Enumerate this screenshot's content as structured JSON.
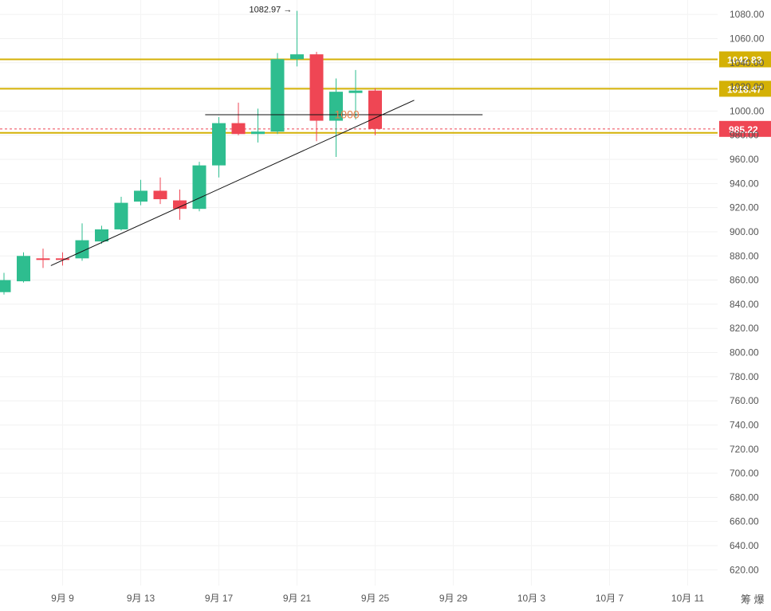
{
  "chart_data": {
    "type": "candlestick",
    "title": "",
    "colors": {
      "up": "#2ebd8f",
      "down": "#ef4654",
      "level": "#d4b106",
      "current": "#ef4654",
      "trendline": "#111111"
    },
    "x_tick_labels": [
      {
        "date": "9月 9",
        "index": 3
      },
      {
        "date": "9月 13",
        "index": 7
      },
      {
        "date": "9月 17",
        "index": 11
      },
      {
        "date": "9月 21",
        "index": 15
      },
      {
        "date": "9月 25",
        "index": 19
      },
      {
        "date": "9月 29",
        "index": 23
      },
      {
        "date": "10月 3",
        "index": 27
      },
      {
        "date": "10月 7",
        "index": 31
      },
      {
        "date": "10月 11",
        "index": 35
      }
    ],
    "y_ticks": [
      620,
      640,
      660,
      680,
      700,
      720,
      740,
      760,
      780,
      800,
      820,
      840,
      860,
      880,
      900,
      920,
      940,
      960,
      980,
      1000,
      1020,
      1040,
      1060,
      1080
    ],
    "y_tick_labels": [
      "620.00",
      "640.00",
      "660.00",
      "680.00",
      "700.00",
      "720.00",
      "740.00",
      "760.00",
      "780.00",
      "800.00",
      "820.00",
      "840.00",
      "860.00",
      "880.00",
      "900.00",
      "920.00",
      "940.00",
      "960.00",
      "980.00",
      "1000.00",
      "1020.00",
      "1040.00",
      "1060.00",
      "1080.00"
    ],
    "ylim": [
      607,
      1092
    ],
    "candles": [
      {
        "o": 850,
        "h": 866,
        "l": 848,
        "c": 860
      },
      {
        "o": 859,
        "h": 883,
        "l": 858,
        "c": 880
      },
      {
        "o": 878,
        "h": 886,
        "l": 870,
        "c": 877
      },
      {
        "o": 878,
        "h": 883,
        "l": 872,
        "c": 877
      },
      {
        "o": 878,
        "h": 907,
        "l": 876,
        "c": 893
      },
      {
        "o": 892,
        "h": 905,
        "l": 890,
        "c": 902
      },
      {
        "o": 902,
        "h": 929,
        "l": 901,
        "c": 924
      },
      {
        "o": 925,
        "h": 943,
        "l": 922,
        "c": 934
      },
      {
        "o": 934,
        "h": 945,
        "l": 923,
        "c": 927
      },
      {
        "o": 926,
        "h": 935,
        "l": 910,
        "c": 919
      },
      {
        "o": 919,
        "h": 958,
        "l": 917,
        "c": 955
      },
      {
        "o": 955,
        "h": 995,
        "l": 945,
        "c": 990
      },
      {
        "o": 990,
        "h": 1007,
        "l": 980,
        "c": 981
      },
      {
        "o": 981,
        "h": 1002,
        "l": 974,
        "c": 983
      },
      {
        "o": 983,
        "h": 1048,
        "l": 981,
        "c": 1043
      },
      {
        "o": 1043,
        "h": 1082.97,
        "l": 1037,
        "c": 1047
      },
      {
        "o": 1047,
        "h": 1049,
        "l": 975,
        "c": 992
      },
      {
        "o": 992,
        "h": 1027,
        "l": 962,
        "c": 1016
      },
      {
        "o": 1015,
        "h": 1034,
        "l": 993,
        "c": 1017
      },
      {
        "o": 1017,
        "h": 1019,
        "l": 980,
        "c": 985.22
      }
    ],
    "levels": [
      {
        "value": 1042.83,
        "label": "1042.83"
      },
      {
        "value": 1018.47,
        "label": "1018.47"
      },
      {
        "value": 982,
        "label": ""
      }
    ],
    "current_price": {
      "value": 985.22,
      "label": "985.22"
    },
    "trendlines": [
      {
        "from": [
          2.4,
          872
        ],
        "to": [
          21.0,
          1009
        ]
      },
      {
        "from": [
          10.3,
          997
        ],
        "to": [
          24.5,
          997
        ]
      }
    ],
    "annotations": {
      "high_label": "1082.97 →",
      "watermark": "1000"
    },
    "corner_text": "筹 爆"
  }
}
